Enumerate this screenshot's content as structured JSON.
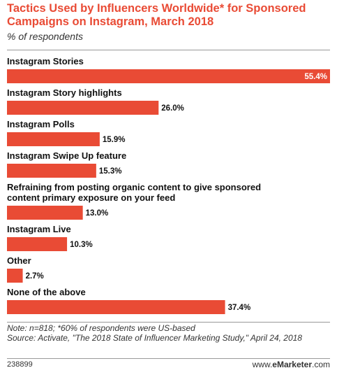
{
  "header": {
    "title": "Tactics Used by Influencers Worldwide* for Sponsored Campaigns on Instagram, March 2018",
    "subtitle": "% of respondents"
  },
  "chart_data": {
    "type": "bar",
    "orientation": "horizontal",
    "categories": [
      "Instagram Stories",
      "Instagram Story highlights",
      "Instagram Polls",
      "Instagram Swipe Up feature",
      "Refraining from posting organic content to give sponsored content primary exposure on your feed",
      "Instagram Live",
      "Other",
      "None of the above"
    ],
    "category_lines": [
      [
        "Instagram Stories"
      ],
      [
        "Instagram Story highlights"
      ],
      [
        "Instagram Polls"
      ],
      [
        "Instagram Swipe Up feature"
      ],
      [
        "Refraining from posting organic content to give sponsored",
        "content primary exposure on your feed"
      ],
      [
        "Instagram Live"
      ],
      [
        "Other"
      ],
      [
        "None of the above"
      ]
    ],
    "values": [
      55.4,
      26.0,
      15.9,
      15.3,
      13.0,
      10.3,
      2.7,
      37.4
    ],
    "value_labels": [
      "55.4%",
      "26.0%",
      "15.9%",
      "15.3%",
      "13.0%",
      "10.3%",
      "2.7%",
      "37.4%"
    ],
    "xlim": [
      0,
      55.4
    ],
    "bar_color": "#e94b35",
    "grid": false,
    "legend": "none"
  },
  "footer": {
    "note": "Note: n=818; *60% of respondents were US-based",
    "source": "Source: Activate, \"The 2018 State of Influencer Marketing Study,\" April 24, 2018",
    "chart_id": "238899",
    "brand_prefix": "www.",
    "brand_name": "eMarketer",
    "brand_suffix": ".com"
  }
}
